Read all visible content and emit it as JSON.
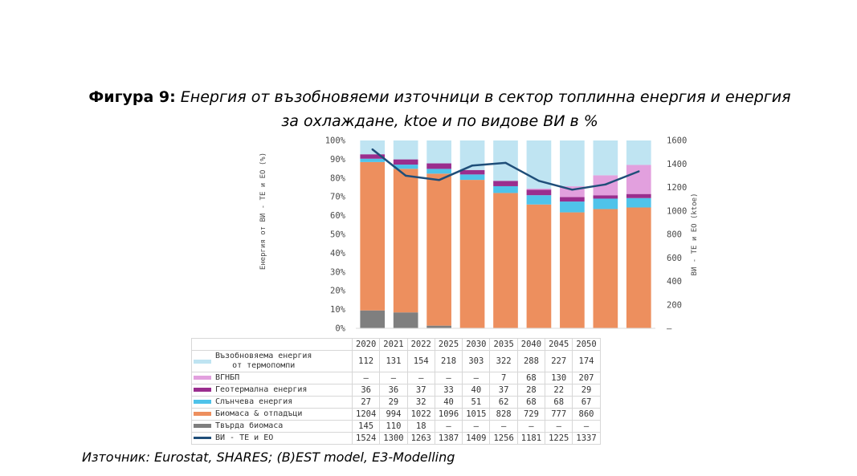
{
  "figure": {
    "label": "Фигура 9:",
    "caption_line1": "Енергия от възобновяеми източници в сектор топлинна енергия и енергия",
    "caption_line2": "за охлаждане, ktoe и по видове ВИ в %",
    "source": "Източник: Eurostat, SHARES; (B)EST model, E3-Modelling"
  },
  "chart_data": {
    "type": "bar",
    "stacked": true,
    "categories": [
      "2020",
      "2021",
      "2022",
      "2025",
      "2030",
      "2035",
      "2040",
      "2045",
      "2050"
    ],
    "ylabel": "Енергия от ВИ - ТЕ и ЕО (%)",
    "y2label": "ВИ - ТЕ и ЕО (ktoe)",
    "ylim": [
      0,
      100
    ],
    "y2lim": [
      0,
      1600
    ],
    "yticks": [
      "0%",
      "10%",
      "20%",
      "30%",
      "40%",
      "50%",
      "60%",
      "70%",
      "80%",
      "90%",
      "100%"
    ],
    "y2ticks": [
      "–",
      "200",
      "400",
      "600",
      "800",
      "1000",
      "1200",
      "1400",
      "1600"
    ],
    "series": [
      {
        "name": "Твърда биомаса",
        "color": "#7f7f7f",
        "labels": [
          "145",
          "110",
          "18",
          "–",
          "–",
          "–",
          "–",
          "–",
          "–"
        ],
        "values": [
          145,
          110,
          18,
          0,
          0,
          0,
          0,
          0,
          0
        ]
      },
      {
        "name": "Биомаса & отпадъци",
        "color": "#ed8f5e",
        "labels": [
          "1204",
          "994",
          "1022",
          "1096",
          "1015",
          "828",
          "729",
          "777",
          "860"
        ],
        "values": [
          1204,
          994,
          1022,
          1096,
          1015,
          828,
          729,
          777,
          860
        ]
      },
      {
        "name": "Слънчева енергия",
        "color": "#4fc3ea",
        "labels": [
          "27",
          "29",
          "32",
          "40",
          "51",
          "62",
          "68",
          "68",
          "67"
        ],
        "values": [
          27,
          29,
          32,
          40,
          51,
          62,
          68,
          68,
          67
        ]
      },
      {
        "name": "Геотермална енергия",
        "color": "#9a2e8e",
        "labels": [
          "36",
          "36",
          "37",
          "33",
          "40",
          "37",
          "28",
          "22",
          "29"
        ],
        "values": [
          36,
          36,
          37,
          33,
          40,
          37,
          28,
          22,
          29
        ]
      },
      {
        "name": "ВГНБП",
        "color": "#e2a0de",
        "labels": [
          "–",
          "–",
          "–",
          "–",
          "–",
          "7",
          "68",
          "130",
          "207"
        ],
        "values": [
          0,
          0,
          0,
          0,
          0,
          7,
          68,
          130,
          207
        ]
      },
      {
        "name_line1": "Възобновяема енергия",
        "name_line2": "от термопомпи",
        "color": "#bfe4f2",
        "labels": [
          "112",
          "131",
          "154",
          "218",
          "303",
          "322",
          "288",
          "227",
          "174"
        ],
        "values": [
          112,
          131,
          154,
          218,
          303,
          322,
          288,
          227,
          174
        ]
      }
    ],
    "line_series": {
      "name": "ВИ - ТЕ и ЕО",
      "color": "#1f4e79",
      "axis": "right",
      "labels": [
        "1524",
        "1300",
        "1263",
        "1387",
        "1409",
        "1256",
        "1181",
        "1225",
        "1337"
      ],
      "values": [
        1524,
        1300,
        1263,
        1387,
        1409,
        1256,
        1181,
        1225,
        1337
      ]
    },
    "grid": false,
    "legend": "table-below"
  }
}
